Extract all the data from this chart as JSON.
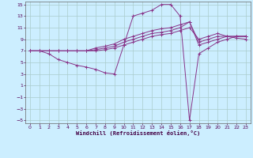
{
  "xlabel": "Windchill (Refroidissement éolien,°C)",
  "bg_color": "#cceeff",
  "line_color": "#883388",
  "xlim": [
    -0.5,
    23.5
  ],
  "ylim": [
    -5.5,
    15.5
  ],
  "xticks": [
    0,
    1,
    2,
    3,
    4,
    5,
    6,
    7,
    8,
    9,
    10,
    11,
    12,
    13,
    14,
    15,
    16,
    17,
    18,
    19,
    20,
    21,
    22,
    23
  ],
  "yticks": [
    -5,
    -3,
    -1,
    1,
    3,
    5,
    7,
    9,
    11,
    13,
    15
  ],
  "grid_color": "#aacccc",
  "series": [
    [
      0,
      7,
      1,
      7,
      2,
      7,
      3,
      7,
      4,
      7,
      5,
      7,
      6,
      7,
      7,
      7,
      8,
      7.2,
      9,
      7.5,
      10,
      8,
      11,
      8.5,
      12,
      9,
      13,
      9.5,
      14,
      9.8,
      15,
      10,
      16,
      10.5,
      17,
      11,
      18,
      9,
      19,
      9.5,
      20,
      10,
      21,
      9.5,
      22,
      9.2,
      23,
      9
    ],
    [
      0,
      7,
      1,
      7,
      2,
      7,
      3,
      7,
      4,
      7,
      5,
      7,
      6,
      7,
      7,
      7.5,
      8,
      7.8,
      9,
      8.2,
      10,
      9,
      11,
      9.5,
      12,
      10,
      13,
      10.5,
      14,
      10.8,
      15,
      11,
      16,
      11.5,
      17,
      12,
      18,
      8,
      19,
      8.5,
      20,
      9,
      21,
      9.5,
      22,
      9.5,
      23,
      9.5
    ],
    [
      0,
      7,
      1,
      7,
      2,
      6.5,
      3,
      5.5,
      4,
      5,
      5,
      4.5,
      6,
      4.2,
      7,
      3.8,
      8,
      3.2,
      9,
      3,
      10,
      8,
      11,
      13,
      12,
      13.5,
      13,
      14,
      14,
      15,
      15,
      15,
      16,
      13,
      17,
      -5,
      18,
      6.5,
      19,
      7.5,
      20,
      8.5,
      21,
      9,
      22,
      9.5,
      23,
      9.5
    ],
    [
      0,
      7,
      1,
      7,
      2,
      7,
      3,
      7,
      4,
      7,
      5,
      7,
      6,
      7,
      7,
      7.2,
      8,
      7.5,
      9,
      7.8,
      10,
      8.5,
      11,
      9,
      12,
      9.5,
      13,
      10,
      14,
      10.2,
      15,
      10.5,
      16,
      11,
      17,
      12,
      18,
      8.5,
      19,
      9,
      20,
      9.5,
      21,
      9.5,
      22,
      9.5,
      23,
      9.5
    ]
  ]
}
